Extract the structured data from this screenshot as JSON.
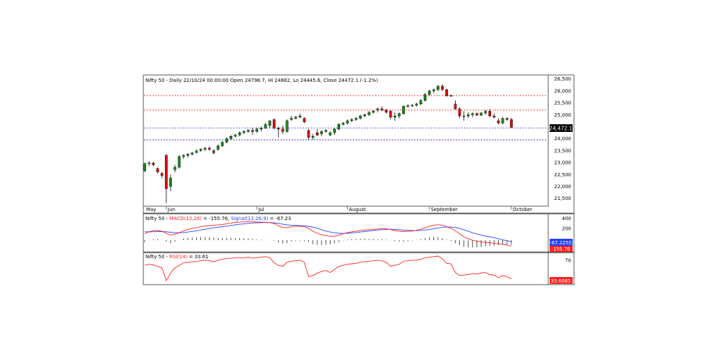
{
  "colors": {
    "up": "#1a8a1a",
    "down": "#e01010",
    "resistance": "#ff2020",
    "support": "#2020e0",
    "macd": "#ff2020",
    "signal": "#2040ff",
    "rsi": "#ff2020",
    "histogram": "#222222",
    "panel_border": "#555555"
  },
  "price_panel": {
    "title": "Nifty 50 - Daily 22/10/24 00:00:00 Open 24798.7, Hi 24882, Lo 24445.6, Close 24472.1 (-1.2%)",
    "last_price_label": "24,472.1"
  },
  "macd_panel": {
    "name": "Nifty 50 - ",
    "macd_label": "MACD(12,26)",
    "macd_value": " = -155.76, ",
    "signal_label": "Signal(12,26,9)",
    "signal_value": " = -67.23",
    "signal_box": "-67.2255",
    "macd_box": "-155.76"
  },
  "rsi_panel": {
    "name": "Nifty 50 - ",
    "rsi_label": "RSI(14)",
    "rsi_value": " = 33.61",
    "rsi_box": "33.6085"
  },
  "chart_data": [
    {
      "type": "candlestick",
      "title": "Nifty 50 - Daily 22/10/24 00:00:00 Open 24798.7, Hi 24882, Lo 24445.6, Close 24472.1 (-1.2%)",
      "x_ticks": [
        "May",
        "Jun",
        "Jul",
        "August",
        "September",
        "October"
      ],
      "y_ticks": [
        "21,500",
        "22,000",
        "22,500",
        "23,000",
        "23,500",
        "24,000",
        "24,500",
        "25,000",
        "25,500",
        "26,000",
        "26,500"
      ],
      "ylim": [
        21200,
        26550
      ],
      "resistance_levels": [
        25200,
        25800
      ],
      "support_levels": [
        24450,
        23950
      ],
      "candles": [
        {
          "o": 22650,
          "h": 23000,
          "l": 22600,
          "c": 22950
        },
        {
          "o": 22950,
          "h": 23050,
          "l": 22850,
          "c": 22980
        },
        {
          "o": 22980,
          "h": 23020,
          "l": 22850,
          "c": 22900
        },
        {
          "o": 22750,
          "h": 22800,
          "l": 22550,
          "c": 22600
        },
        {
          "o": 22550,
          "h": 22600,
          "l": 22350,
          "c": 22450
        },
        {
          "o": 23300,
          "h": 23350,
          "l": 21300,
          "c": 21900
        },
        {
          "o": 22000,
          "h": 22500,
          "l": 21800,
          "c": 22350
        },
        {
          "o": 22700,
          "h": 22900,
          "l": 22600,
          "c": 22800
        },
        {
          "o": 22800,
          "h": 23300,
          "l": 22750,
          "c": 23250
        },
        {
          "o": 23250,
          "h": 23350,
          "l": 23150,
          "c": 23300
        },
        {
          "o": 23300,
          "h": 23400,
          "l": 23200,
          "c": 23350
        },
        {
          "o": 23350,
          "h": 23450,
          "l": 23300,
          "c": 23400
        },
        {
          "o": 23420,
          "h": 23550,
          "l": 23380,
          "c": 23480
        },
        {
          "o": 23500,
          "h": 23600,
          "l": 23450,
          "c": 23550
        },
        {
          "o": 23550,
          "h": 23650,
          "l": 23480,
          "c": 23600
        },
        {
          "o": 23600,
          "h": 23680,
          "l": 23500,
          "c": 23550
        },
        {
          "o": 23400,
          "h": 23550,
          "l": 23350,
          "c": 23500
        },
        {
          "o": 23550,
          "h": 23750,
          "l": 23500,
          "c": 23700
        },
        {
          "o": 23700,
          "h": 23900,
          "l": 23650,
          "c": 23850
        },
        {
          "o": 23850,
          "h": 24050,
          "l": 23800,
          "c": 24000
        },
        {
          "o": 24000,
          "h": 24150,
          "l": 23950,
          "c": 24100
        },
        {
          "o": 24100,
          "h": 24200,
          "l": 24050,
          "c": 24150
        },
        {
          "o": 24150,
          "h": 24300,
          "l": 24100,
          "c": 24250
        },
        {
          "o": 24250,
          "h": 24350,
          "l": 24200,
          "c": 24300
        },
        {
          "o": 24300,
          "h": 24400,
          "l": 24250,
          "c": 24350
        },
        {
          "o": 24350,
          "h": 24450,
          "l": 24150,
          "c": 24300
        },
        {
          "o": 24300,
          "h": 24450,
          "l": 24250,
          "c": 24400
        },
        {
          "o": 24400,
          "h": 24500,
          "l": 24300,
          "c": 24450
        },
        {
          "o": 24450,
          "h": 24650,
          "l": 24400,
          "c": 24600
        },
        {
          "o": 24550,
          "h": 24700,
          "l": 24450,
          "c": 24750
        },
        {
          "o": 24800,
          "h": 24850,
          "l": 24400,
          "c": 24450
        },
        {
          "o": 24450,
          "h": 24500,
          "l": 24050,
          "c": 24400
        },
        {
          "o": 24400,
          "h": 24550,
          "l": 24200,
          "c": 24300
        },
        {
          "o": 24300,
          "h": 24800,
          "l": 24250,
          "c": 24750
        },
        {
          "o": 24800,
          "h": 24950,
          "l": 24750,
          "c": 24850
        },
        {
          "o": 24850,
          "h": 24950,
          "l": 24800,
          "c": 24900
        },
        {
          "o": 24900,
          "h": 25050,
          "l": 24850,
          "c": 24950
        },
        {
          "o": 24850,
          "h": 24900,
          "l": 24650,
          "c": 24700
        },
        {
          "o": 24350,
          "h": 24400,
          "l": 23950,
          "c": 24050
        },
        {
          "o": 24050,
          "h": 24200,
          "l": 23950,
          "c": 24100
        },
        {
          "o": 24250,
          "h": 24400,
          "l": 24100,
          "c": 24150
        },
        {
          "o": 24200,
          "h": 24350,
          "l": 24100,
          "c": 24300
        },
        {
          "o": 24300,
          "h": 24400,
          "l": 24250,
          "c": 24350
        },
        {
          "o": 24150,
          "h": 24300,
          "l": 24100,
          "c": 24250
        },
        {
          "o": 24250,
          "h": 24450,
          "l": 24150,
          "c": 24400
        },
        {
          "o": 24400,
          "h": 24650,
          "l": 24350,
          "c": 24600
        },
        {
          "o": 24600,
          "h": 24700,
          "l": 24550,
          "c": 24650
        },
        {
          "o": 24650,
          "h": 24800,
          "l": 24600,
          "c": 24750
        },
        {
          "o": 24750,
          "h": 24850,
          "l": 24700,
          "c": 24800
        },
        {
          "o": 24800,
          "h": 24900,
          "l": 24750,
          "c": 24850
        },
        {
          "o": 24850,
          "h": 25000,
          "l": 24800,
          "c": 24950
        },
        {
          "o": 24950,
          "h": 25050,
          "l": 24900,
          "c": 25000
        },
        {
          "o": 25000,
          "h": 25150,
          "l": 24950,
          "c": 25100
        },
        {
          "o": 25100,
          "h": 25200,
          "l": 25050,
          "c": 25150
        },
        {
          "o": 25200,
          "h": 25300,
          "l": 25100,
          "c": 25250
        },
        {
          "o": 25250,
          "h": 25350,
          "l": 25150,
          "c": 25200
        },
        {
          "o": 25200,
          "h": 25250,
          "l": 25050,
          "c": 25100
        },
        {
          "o": 25150,
          "h": 25200,
          "l": 24800,
          "c": 24900
        },
        {
          "o": 24900,
          "h": 25100,
          "l": 24750,
          "c": 24950
        },
        {
          "o": 24950,
          "h": 25100,
          "l": 24850,
          "c": 25050
        },
        {
          "o": 25050,
          "h": 25400,
          "l": 25000,
          "c": 25350
        },
        {
          "o": 25350,
          "h": 25450,
          "l": 25300,
          "c": 25380
        },
        {
          "o": 25380,
          "h": 25450,
          "l": 25330,
          "c": 25400
        },
        {
          "o": 25400,
          "h": 25500,
          "l": 25350,
          "c": 25450
        },
        {
          "o": 25450,
          "h": 25650,
          "l": 25400,
          "c": 25600
        },
        {
          "o": 25600,
          "h": 25900,
          "l": 25550,
          "c": 25850
        },
        {
          "o": 25850,
          "h": 26050,
          "l": 25800,
          "c": 26000
        },
        {
          "o": 26000,
          "h": 26100,
          "l": 25900,
          "c": 26050
        },
        {
          "o": 26050,
          "h": 26250,
          "l": 26000,
          "c": 26200
        },
        {
          "o": 26200,
          "h": 26280,
          "l": 26000,
          "c": 26050
        },
        {
          "o": 26050,
          "h": 26100,
          "l": 25750,
          "c": 25800
        },
        {
          "o": 25800,
          "h": 25850,
          "l": 25750,
          "c": 25810
        },
        {
          "o": 25450,
          "h": 25600,
          "l": 25200,
          "c": 25250
        },
        {
          "o": 25250,
          "h": 25300,
          "l": 24850,
          "c": 24950
        },
        {
          "o": 24950,
          "h": 25150,
          "l": 24750,
          "c": 24950
        },
        {
          "o": 24950,
          "h": 25100,
          "l": 24850,
          "c": 25000
        },
        {
          "o": 25000,
          "h": 25100,
          "l": 24900,
          "c": 25050
        },
        {
          "o": 25050,
          "h": 25100,
          "l": 24950,
          "c": 24980
        },
        {
          "o": 24980,
          "h": 25100,
          "l": 24950,
          "c": 25080
        },
        {
          "o": 25080,
          "h": 25200,
          "l": 25000,
          "c": 25150
        },
        {
          "o": 25150,
          "h": 25250,
          "l": 24900,
          "c": 24950
        },
        {
          "o": 24950,
          "h": 25050,
          "l": 24850,
          "c": 24900
        },
        {
          "o": 24750,
          "h": 24850,
          "l": 24600,
          "c": 24650
        },
        {
          "o": 24650,
          "h": 24900,
          "l": 24600,
          "c": 24850
        },
        {
          "o": 24850,
          "h": 24900,
          "l": 24750,
          "c": 24800
        },
        {
          "o": 24798.7,
          "h": 24882,
          "l": 24445.6,
          "c": 24472.1
        }
      ]
    },
    {
      "type": "line",
      "title": "Nifty 50 - MACD(12,26) = -155.76, Signal(12,26,9) = -67.23",
      "y_ticks": [
        "200",
        "400"
      ],
      "ylim": [
        -260,
        460
      ],
      "series": [
        {
          "name": "MACD(12,26)",
          "values": [
            90,
            130,
            150,
            155,
            140,
            100,
            60,
            85,
            110,
            150,
            175,
            195,
            210,
            230,
            245,
            255,
            260,
            265,
            275,
            290,
            305,
            315,
            320,
            330,
            335,
            330,
            325,
            320,
            315,
            310,
            295,
            250,
            215,
            210,
            230,
            240,
            240,
            230,
            200,
            140,
            100,
            70,
            50,
            40,
            45,
            60,
            90,
            115,
            130,
            140,
            155,
            165,
            170,
            180,
            185,
            195,
            190,
            175,
            155,
            140,
            135,
            140,
            145,
            160,
            180,
            210,
            240,
            260,
            270,
            260,
            235,
            200,
            150,
            90,
            30,
            -10,
            -40,
            -60,
            -75,
            -80,
            -90,
            -100,
            -110,
            -120,
            -135,
            -155.76
          ]
        },
        {
          "name": "Signal(12,26,9)",
          "values": [
            130,
            128,
            130,
            132,
            135,
            130,
            120,
            112,
            110,
            115,
            125,
            137,
            150,
            165,
            180,
            195,
            208,
            220,
            231,
            243,
            256,
            268,
            278,
            288,
            298,
            305,
            309,
            311,
            312,
            311,
            308,
            297,
            281,
            267,
            260,
            256,
            253,
            248,
            238,
            222,
            198,
            170,
            145,
            125,
            110,
            100,
            97,
            100,
            108,
            116,
            125,
            135,
            145,
            155,
            165,
            172,
            178,
            180,
            177,
            172,
            164,
            158,
            154,
            153,
            157,
            165,
            177,
            192,
            207,
            219,
            226,
            223,
            213,
            195,
            170,
            140,
            110,
            85,
            62,
            45,
            30,
            12,
            -8,
            -30,
            -50,
            -67.2255
          ]
        }
      ]
    },
    {
      "type": "line",
      "title": "Nifty 50 - RSI(14) = 33.61",
      "y_ticks": [
        "70"
      ],
      "ylim": [
        25,
        82
      ],
      "series": [
        {
          "name": "RSI(14)",
          "values": [
            60,
            62,
            61,
            58,
            55,
            30,
            45,
            55,
            60,
            65,
            66,
            67,
            68,
            69,
            70,
            69,
            67,
            70,
            72,
            73,
            74,
            75,
            75,
            75,
            76,
            74,
            75,
            76,
            77,
            75,
            65,
            60,
            58,
            66,
            68,
            69,
            70,
            66,
            38,
            40,
            45,
            48,
            50,
            46,
            52,
            58,
            60,
            62,
            63,
            64,
            66,
            67,
            68,
            69,
            70,
            69,
            66,
            58,
            60,
            62,
            68,
            69,
            70,
            70,
            72,
            75,
            76,
            77,
            78,
            73,
            64,
            63,
            46,
            40,
            41,
            42,
            44,
            43,
            45,
            46,
            42,
            41,
            36,
            40,
            38,
            33.61
          ]
        }
      ]
    }
  ]
}
